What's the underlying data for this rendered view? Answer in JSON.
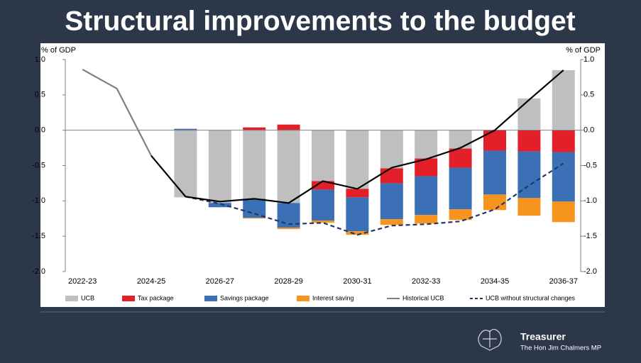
{
  "chart_data": {
    "type": "bar",
    "title": "Structural improvements to the budget",
    "ylabel": "% of GDP",
    "y2label": "% of GDP",
    "categories": [
      "2022-23",
      null,
      "2024-25",
      null,
      "2026-27",
      null,
      "2028-29",
      null,
      "2030-31",
      null,
      "2032-33",
      null,
      "2034-35",
      null,
      "2036-37"
    ],
    "ylim": [
      -2.0,
      1.0
    ],
    "yticks": [
      {
        "value": 1.0,
        "label": "1.0"
      },
      {
        "value": 0.5,
        "label": "0.5"
      },
      {
        "value": 0.0,
        "label": "0.0"
      },
      {
        "value": -0.5,
        "label": "-0.5"
      },
      {
        "value": -1.0,
        "label": "-1.0"
      },
      {
        "value": -1.5,
        "label": "-1.5"
      },
      {
        "value": -2.0,
        "label": "-2.0"
      }
    ],
    "y2lim": [
      -2.0,
      1.0
    ],
    "y2ticks": [
      {
        "value": 1.0,
        "label": "1.0"
      },
      {
        "value": 0.5,
        "label": "0.5"
      },
      {
        "value": 0.0,
        "label": "0.0"
      },
      {
        "value": -0.5,
        "label": "-0.5"
      },
      {
        "value": -1.0,
        "label": "-1.0"
      },
      {
        "value": -1.5,
        "label": "-1.5"
      },
      {
        "value": -2.0,
        "label": "-2.0"
      }
    ],
    "stacked": true,
    "legend": "bottom",
    "series": [
      {
        "name": "UCB",
        "type": "bar",
        "color": "#bfbfbf",
        "values": [
          null,
          null,
          null,
          -0.95,
          -1.03,
          -0.97,
          -1.03,
          -0.72,
          -0.83,
          -0.54,
          -0.4,
          -0.26,
          0,
          0.45,
          0.85
        ]
      },
      {
        "name": "Tax package",
        "type": "bar",
        "color": "#e3202a",
        "values": [
          null,
          null,
          null,
          0,
          0,
          0.04,
          0.08,
          -0.12,
          -0.12,
          -0.21,
          -0.25,
          -0.27,
          -0.29,
          -0.3,
          -0.31
        ]
      },
      {
        "name": "Savings package",
        "type": "bar",
        "color": "#3b6fb6",
        "values": [
          null,
          null,
          null,
          0.02,
          -0.06,
          -0.27,
          -0.35,
          -0.44,
          -0.48,
          -0.51,
          -0.55,
          -0.59,
          -0.62,
          -0.66,
          -0.7
        ]
      },
      {
        "name": "Interest saving",
        "type": "bar",
        "color": "#f7941d",
        "values": [
          null,
          null,
          null,
          0,
          0,
          -0.01,
          -0.02,
          -0.03,
          -0.05,
          -0.08,
          -0.12,
          -0.15,
          -0.22,
          -0.25,
          -0.29
        ]
      },
      {
        "name": "Historical UCB",
        "type": "line",
        "color": "#7f7f7f",
        "values": [
          0.86,
          0.59,
          -0.36,
          null,
          null,
          null,
          null,
          null,
          null,
          null,
          null,
          null,
          null,
          null,
          null
        ]
      },
      {
        "name": "UCB without structural changes",
        "type": "line",
        "color": "#1f3864",
        "dashed": true,
        "values": [
          null,
          null,
          null,
          -0.94,
          -1.04,
          -1.18,
          -1.33,
          -1.31,
          -1.48,
          -1.35,
          -1.33,
          -1.29,
          -1.12,
          -0.78,
          -0.47
        ]
      },
      {
        "type": "line",
        "color": "#000000",
        "values": [
          null,
          null,
          -0.36,
          -0.94,
          -1.01,
          -0.97,
          -1.03,
          -0.72,
          -0.83,
          -0.53,
          -0.41,
          -0.25,
          0.0,
          0.43,
          0.85
        ]
      }
    ]
  },
  "footer": {
    "title": "Treasurer",
    "subtitle": "The Hon Jim Chalmers MP"
  }
}
